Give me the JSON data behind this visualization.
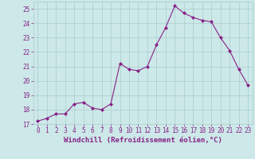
{
  "x": [
    0,
    1,
    2,
    3,
    4,
    5,
    6,
    7,
    8,
    9,
    10,
    11,
    12,
    13,
    14,
    15,
    16,
    17,
    18,
    19,
    20,
    21,
    22,
    23
  ],
  "y": [
    17.2,
    17.4,
    17.7,
    17.7,
    18.4,
    18.5,
    18.1,
    18.0,
    18.4,
    21.2,
    20.8,
    20.7,
    21.0,
    22.5,
    23.7,
    25.2,
    24.7,
    24.4,
    24.2,
    24.1,
    23.0,
    22.1,
    20.8,
    19.7
  ],
  "line_color": "#882288",
  "marker": "D",
  "marker_size": 2.0,
  "background_color": "#cce8e8",
  "grid_color": "#aacccc",
  "xlabel": "Windchill (Refroidissement éolien,°C)",
  "ylim": [
    17,
    25.5
  ],
  "xlim": [
    -0.5,
    23.5
  ],
  "yticks": [
    17,
    18,
    19,
    20,
    21,
    22,
    23,
    24,
    25
  ],
  "xticks": [
    0,
    1,
    2,
    3,
    4,
    5,
    6,
    7,
    8,
    9,
    10,
    11,
    12,
    13,
    14,
    15,
    16,
    17,
    18,
    19,
    20,
    21,
    22,
    23
  ],
  "tick_color": "#882288",
  "label_fontsize": 6.5,
  "tick_fontsize": 5.5,
  "linewidth": 0.8
}
